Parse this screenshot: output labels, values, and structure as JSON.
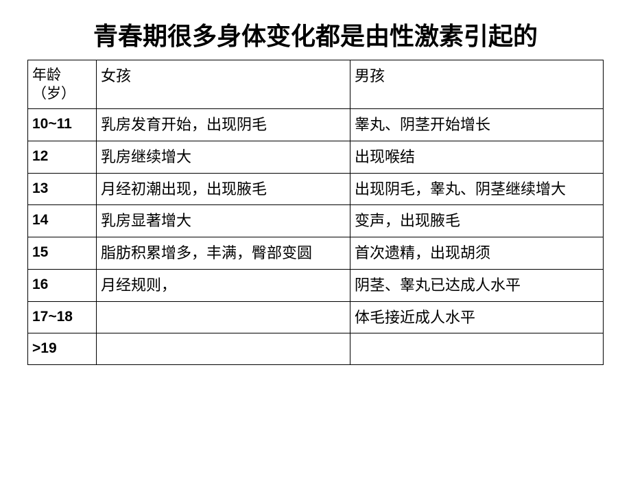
{
  "title": "青春期很多身体变化都是由性激素引起的",
  "table": {
    "columns": {
      "age": "年龄（岁）",
      "girl": "女孩",
      "boy": "男孩"
    },
    "rows": [
      {
        "age": "10~11",
        "girl": "乳房发育开始，出现阴毛",
        "boy": "睾丸、阴茎开始增长"
      },
      {
        "age": "12",
        "girl": "乳房继续增大",
        "boy": "出现喉结"
      },
      {
        "age": "13",
        "girl": "月经初潮出现，出现腋毛",
        "boy": "出现阴毛，睾丸、阴茎继续增大"
      },
      {
        "age": "14",
        "girl": "乳房显著增大",
        "boy": "变声，出现腋毛"
      },
      {
        "age": "15",
        "girl": "脂肪积累增多，丰满，臀部变圆",
        "boy": "首次遗精，出现胡须"
      },
      {
        "age": "16",
        "girl": "月经规则，",
        "boy": "阴茎、睾丸已达成人水平"
      },
      {
        "age": "17~18",
        "girl": "",
        "boy": "体毛接近成人水平"
      },
      {
        "age": ">19",
        "girl": "",
        "boy": ""
      }
    ]
  },
  "style": {
    "title_fontsize": 36,
    "cell_fontsize": 22,
    "border_color": "#000000",
    "background_color": "#ffffff",
    "text_color": "#000000"
  }
}
